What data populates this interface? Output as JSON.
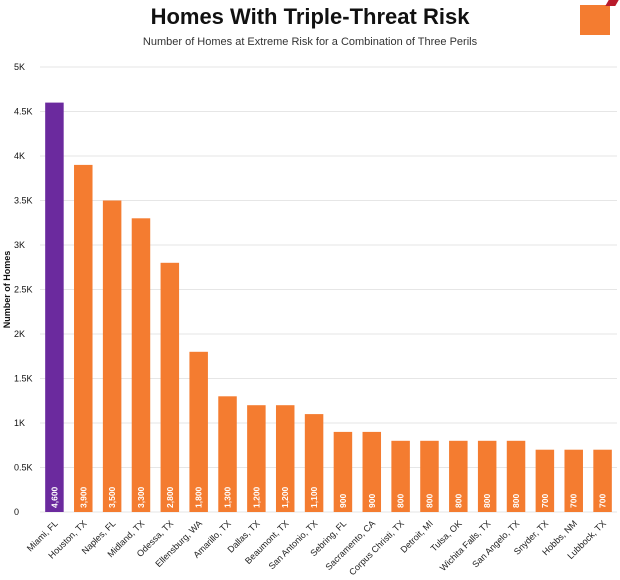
{
  "header": {
    "title": "Homes With Triple-Threat Risk",
    "subtitle": "Number of Homes at Extreme Risk for a Combination of Three Perils"
  },
  "colors": {
    "highlight": "#6b2a9e",
    "bar": "#f47c30",
    "grid": "#e6e6e6"
  },
  "chart_data": {
    "type": "bar",
    "title": "Homes With Triple-Threat Risk",
    "subtitle": "Number of Homes at Extreme Risk for a Combination of Three Perils",
    "xlabel": "",
    "ylabel": "Number of Homes",
    "ylim": [
      0,
      5000
    ],
    "yticks": [
      0,
      500,
      1000,
      1500,
      2000,
      2500,
      3000,
      3500,
      4000,
      4500,
      5000
    ],
    "ytick_labels": [
      "0",
      "0.5K",
      "1K",
      "1.5K",
      "2K",
      "2.5K",
      "3K",
      "3.5K",
      "4K",
      "4.5K",
      "5K"
    ],
    "categories": [
      "Miami, FL",
      "Houston, TX",
      "Naples, FL",
      "Midland, TX",
      "Odessa, TX",
      "Ellensburg, WA",
      "Amarillo, TX",
      "Dallas, TX",
      "Beaumont, TX",
      "San Antonio, TX",
      "Sebring, FL",
      "Sacramento, CA",
      "Corpus Christi, TX",
      "Detroit, MI",
      "Tulsa, OK",
      "Wichita Falls, TX",
      "San Angelo, TX",
      "Snyder, TX",
      "Hobbs, NM",
      "Lubbock, TX"
    ],
    "values": [
      4600,
      3900,
      3500,
      3300,
      2800,
      1800,
      1300,
      1200,
      1200,
      1100,
      900,
      900,
      800,
      800,
      800,
      800,
      800,
      700,
      700,
      700
    ],
    "value_labels": [
      "4,600",
      "3,900",
      "3,500",
      "3,300",
      "2,800",
      "1,800",
      "1,300",
      "1,200",
      "1,200",
      "1,100",
      "900",
      "900",
      "800",
      "800",
      "800",
      "800",
      "800",
      "700",
      "700",
      "700"
    ],
    "highlight_index": 0
  }
}
